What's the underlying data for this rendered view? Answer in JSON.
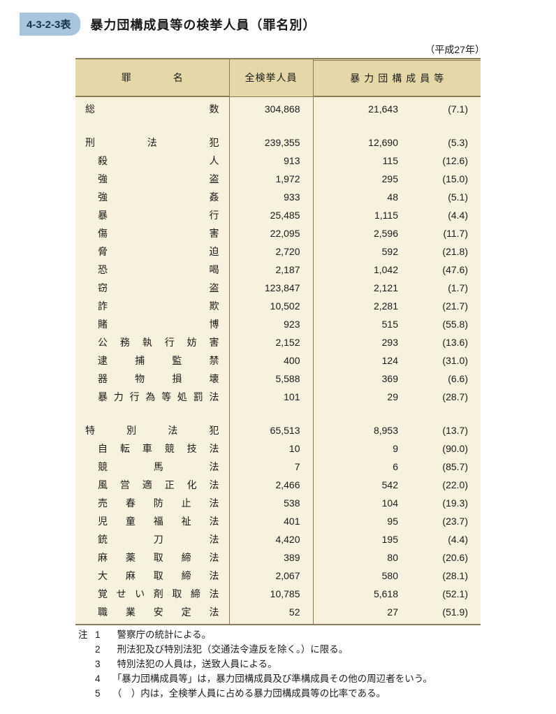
{
  "tag": "4-3-2-3表",
  "title": "暴力団構成員等の検挙人員（罪名別）",
  "year": "（平成27年）",
  "head": {
    "crime": "罪名",
    "total": "全検挙人員",
    "gang": "暴力団構成員等"
  },
  "rows": [
    {
      "label": "総数",
      "indent": false,
      "total": "304,868",
      "gang": "21,643",
      "pct": "(7.1)"
    },
    {
      "spacer": true
    },
    {
      "label": "刑法犯",
      "indent": false,
      "total": "239,355",
      "gang": "12,690",
      "pct": "(5.3)"
    },
    {
      "label": "殺人",
      "indent": true,
      "total": "913",
      "gang": "115",
      "pct": "(12.6)"
    },
    {
      "label": "強盗",
      "indent": true,
      "total": "1,972",
      "gang": "295",
      "pct": "(15.0)"
    },
    {
      "label": "強姦",
      "indent": true,
      "total": "933",
      "gang": "48",
      "pct": "(5.1)"
    },
    {
      "label": "暴行",
      "indent": true,
      "total": "25,485",
      "gang": "1,115",
      "pct": "(4.4)"
    },
    {
      "label": "傷害",
      "indent": true,
      "total": "22,095",
      "gang": "2,596",
      "pct": "(11.7)"
    },
    {
      "label": "脅迫",
      "indent": true,
      "total": "2,720",
      "gang": "592",
      "pct": "(21.8)"
    },
    {
      "label": "恐喝",
      "indent": true,
      "total": "2,187",
      "gang": "1,042",
      "pct": "(47.6)"
    },
    {
      "label": "窃盗",
      "indent": true,
      "total": "123,847",
      "gang": "2,121",
      "pct": "(1.7)"
    },
    {
      "label": "詐欺",
      "indent": true,
      "total": "10,502",
      "gang": "2,281",
      "pct": "(21.7)"
    },
    {
      "label": "賭博",
      "indent": true,
      "total": "923",
      "gang": "515",
      "pct": "(55.8)"
    },
    {
      "label": "公務執行妨害",
      "indent": true,
      "total": "2,152",
      "gang": "293",
      "pct": "(13.6)"
    },
    {
      "label": "逮捕監禁",
      "indent": true,
      "total": "400",
      "gang": "124",
      "pct": "(31.0)"
    },
    {
      "label": "器物損壊",
      "indent": true,
      "total": "5,588",
      "gang": "369",
      "pct": "(6.6)"
    },
    {
      "label": "暴力行為等処罰法",
      "indent": true,
      "total": "101",
      "gang": "29",
      "pct": "(28.7)"
    },
    {
      "spacer": true
    },
    {
      "label": "特別法犯",
      "indent": false,
      "total": "65,513",
      "gang": "8,953",
      "pct": "(13.7)"
    },
    {
      "label": "自転車競技法",
      "indent": true,
      "total": "10",
      "gang": "9",
      "pct": "(90.0)"
    },
    {
      "label": "競馬法",
      "indent": true,
      "total": "7",
      "gang": "6",
      "pct": "(85.7)"
    },
    {
      "label": "風営適正化法",
      "indent": true,
      "total": "2,466",
      "gang": "542",
      "pct": "(22.0)"
    },
    {
      "label": "売春防止法",
      "indent": true,
      "total": "538",
      "gang": "104",
      "pct": "(19.3)"
    },
    {
      "label": "児童福祉法",
      "indent": true,
      "total": "401",
      "gang": "95",
      "pct": "(23.7)"
    },
    {
      "label": "銃刀法",
      "indent": true,
      "total": "4,420",
      "gang": "195",
      "pct": "(4.4)"
    },
    {
      "label": "麻薬取締法",
      "indent": true,
      "total": "389",
      "gang": "80",
      "pct": "(20.6)"
    },
    {
      "label": "大麻取締法",
      "indent": true,
      "total": "2,067",
      "gang": "580",
      "pct": "(28.1)"
    },
    {
      "label": "覚せい剤取締法",
      "indent": true,
      "total": "10,785",
      "gang": "5,618",
      "pct": "(52.1)"
    },
    {
      "label": "職業安定法",
      "indent": true,
      "total": "52",
      "gang": "27",
      "pct": "(51.9)",
      "last": true
    }
  ],
  "notes": {
    "lead": "注",
    "items": [
      "警察庁の統計による。",
      "刑法犯及び特別法犯（交通法令違反を除く。）に限る。",
      "特別法犯の人員は，送致人員による。",
      "「暴力団構成員等」は，暴力団構成員及び準構成員その他の周辺者をいう。",
      "（　）内は，全検挙人員に占める暴力団構成員等の比率である。"
    ]
  }
}
